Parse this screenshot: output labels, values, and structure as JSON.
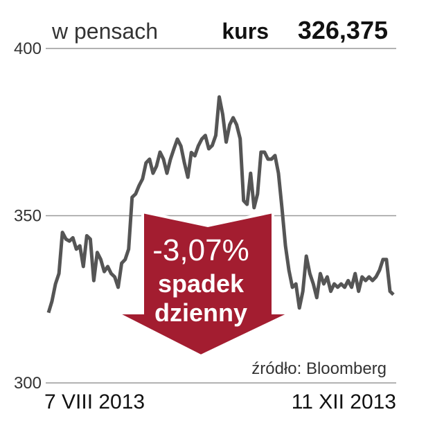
{
  "chart_data": {
    "type": "line",
    "unit_label": "w pensach",
    "price_label": "kurs",
    "price_value": "326,375",
    "annotations": [
      "-3,07%",
      "spadek",
      "dzienny"
    ],
    "source": "źródło: Bloomberg",
    "color": "#555555",
    "grid": true,
    "ylim": [
      300,
      400
    ],
    "yticks": [
      300,
      350,
      400
    ],
    "categories": [
      "7 VIII 2013",
      null,
      null,
      null,
      null,
      null,
      null,
      null,
      null,
      null,
      null,
      null,
      null,
      null,
      null,
      null,
      null,
      null,
      null,
      null,
      null,
      null,
      null,
      null,
      null,
      null,
      null,
      null,
      null,
      null,
      null,
      null,
      null,
      null,
      null,
      null,
      null,
      null,
      null,
      null,
      null,
      null,
      null,
      null,
      null,
      null,
      null,
      null,
      null,
      null,
      null,
      null,
      null,
      null,
      null,
      null,
      null,
      null,
      null,
      null,
      null,
      null,
      null,
      null,
      null,
      null,
      null,
      null,
      null,
      null,
      null,
      null,
      null,
      null,
      null,
      null,
      null,
      null,
      null,
      null,
      null,
      null,
      null,
      null,
      null,
      null,
      null,
      null,
      null,
      null,
      null,
      null,
      null,
      null,
      null,
      null,
      null,
      null,
      null,
      "11 XII 2013"
    ],
    "values": [
      321,
      324.4,
      329.6,
      332.7,
      345,
      343,
      342.4,
      343.4,
      340,
      341,
      334.8,
      344,
      343,
      330.6,
      339,
      336.9,
      333.3,
      334.8,
      332.7,
      331.7,
      328.6,
      335.8,
      336.9,
      340,
      355.5,
      356.5,
      359,
      361,
      365.8,
      366.9,
      362.7,
      364.8,
      369,
      366.9,
      362.7,
      366.9,
      370,
      372.9,
      370.8,
      365.8,
      361.5,
      368.9,
      367.9,
      370.9,
      372.9,
      374,
      370,
      371,
      374,
      385.5,
      380.3,
      372,
      377.2,
      379.3,
      377.2,
      373,
      354.5,
      353.4,
      362.7,
      352.4,
      356.5,
      369,
      369,
      366.9,
      366.9,
      368,
      362.7,
      352.4,
      341,
      333.7,
      328.6,
      329.6,
      322.4,
      327.4,
      337.9,
      332.7,
      329.6,
      325.5,
      332.7,
      329.6,
      331.7,
      327.4,
      329.6,
      328.6,
      329.6,
      328.6,
      330.6,
      328.6,
      332.7,
      327.4,
      331.7,
      330.6,
      331.7,
      330.6,
      331.7,
      333.7,
      336.9,
      336.9,
      327.4,
      326.4
    ]
  }
}
